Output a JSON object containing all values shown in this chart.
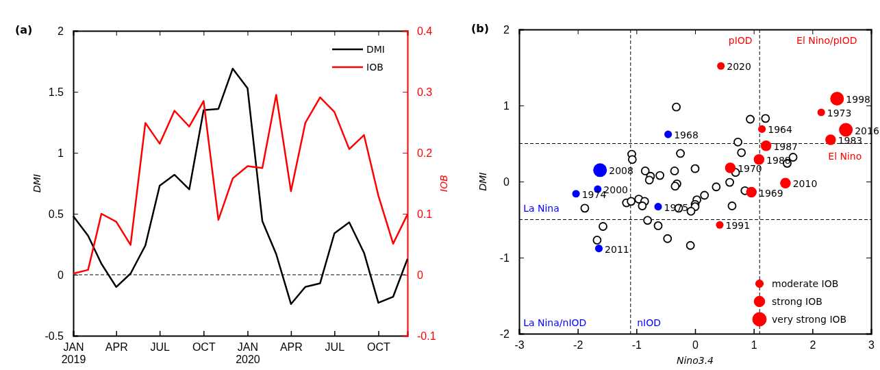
{
  "chart_data": [
    {
      "type": "line",
      "title": "(a)",
      "ylabel": "DMI",
      "y2label": "IOB",
      "legend": "top right",
      "line_style": "solid",
      "x": [
        "2019-01",
        "2019-02",
        "2019-03",
        "2019-04",
        "2019-05",
        "2019-06",
        "2019-07",
        "2019-08",
        "2019-09",
        "2019-10",
        "2019-11",
        "2019-12",
        "2020-01",
        "2020-02",
        "2020-03",
        "2020-04",
        "2020-05",
        "2020-06",
        "2020-07",
        "2020-08",
        "2020-09",
        "2020-10",
        "2020-11",
        "2020-12"
      ],
      "xlim": [
        "2019-01",
        "2020-12"
      ],
      "xticks": [
        {
          "value": "2019-01",
          "label": "JAN\n2019"
        },
        {
          "value": "2019-04",
          "label": "APR"
        },
        {
          "value": "2019-07",
          "label": "JUL"
        },
        {
          "value": "2019-10",
          "label": "OCT"
        },
        {
          "value": "2020-01",
          "label": "JAN\n2020"
        },
        {
          "value": "2020-04",
          "label": "APR"
        },
        {
          "value": "2020-07",
          "label": "JUL"
        },
        {
          "value": "2020-10",
          "label": "OCT"
        }
      ],
      "ylim": [
        -0.5,
        2
      ],
      "yticks": [
        -0.5,
        0,
        0.5,
        1,
        1.5,
        2
      ],
      "y2lim": [
        -0.1,
        0.4
      ],
      "y2ticks": [
        -0.1,
        0,
        0.1,
        0.2,
        0.3,
        0.4
      ],
      "series": [
        {
          "name": "DMI",
          "color": "#000000",
          "values": [
            0.48,
            0.32,
            0.09,
            -0.1,
            0.01,
            0.24,
            0.73,
            0.82,
            0.7,
            1.35,
            1.36,
            1.69,
            1.53,
            0.44,
            0.17,
            -0.24,
            -0.1,
            -0.07,
            0.34,
            0.43,
            0.18,
            -0.23,
            -0.18,
            0.13
          ]
        },
        {
          "name": "IOB",
          "color": "#ff0000",
          "axis": "y2",
          "values": [
            0.002,
            0.008,
            0.1,
            0.087,
            0.049,
            0.249,
            0.215,
            0.269,
            0.243,
            0.285,
            0.09,
            0.158,
            0.178,
            0.175,
            0.295,
            0.137,
            0.249,
            0.291,
            0.267,
            0.206,
            0.229,
            0.13,
            0.051,
            0.099
          ]
        }
      ],
      "ref_lines": [
        {
          "axis": "y",
          "value": 0,
          "color": "#000000",
          "line_style": "dashed"
        }
      ]
    },
    {
      "type": "scatter",
      "title": "(b)",
      "xlabel": "Nino3.4",
      "ylabel": "DMI",
      "legend": "bottom right",
      "marker": "circle",
      "xlim": [
        -3,
        3
      ],
      "xticks": [
        -3,
        -2,
        -1,
        0,
        1,
        2,
        3
      ],
      "ylim": [
        -2,
        2
      ],
      "yticks": [
        -2,
        -1,
        0,
        1,
        2
      ],
      "series": [
        {
          "type": "scatter",
          "color": "#000000",
          "x": [
            -0.32,
            0.94,
            1.2,
            0.73,
            0.79,
            1.67,
            1.57,
            0.69,
            -1.08,
            -1.07,
            -0.25,
            -0.85,
            -0.76,
            -0.78,
            -0.6,
            -0.35,
            0.0,
            0.59,
            -0.31,
            -0.34,
            0.36,
            0.85,
            0.16,
            0.03,
            0.0,
            0.0,
            -0.07,
            -0.28,
            0.63,
            -1.17,
            -1.09,
            -0.96,
            -0.86,
            -0.9,
            -1.88,
            -1.57,
            -0.81,
            -0.63,
            -0.47,
            -0.08,
            -1.67
          ],
          "values": [
            0.98,
            0.82,
            0.83,
            0.52,
            0.38,
            0.32,
            0.24,
            0.12,
            0.36,
            0.29,
            0.37,
            0.14,
            0.07,
            0.02,
            0.08,
            0.14,
            0.17,
            -0.01,
            -0.03,
            -0.06,
            -0.07,
            -0.12,
            -0.18,
            -0.24,
            -0.3,
            -0.33,
            -0.39,
            -0.35,
            -0.32,
            -0.28,
            -0.26,
            -0.23,
            -0.26,
            -0.32,
            -0.35,
            -0.59,
            -0.51,
            -0.58,
            -0.75,
            -0.84,
            -0.77
          ]
        },
        {
          "type": "bubble",
          "color": "#0000ff",
          "x": [
            -0.46,
            -1.62,
            -1.66,
            -2.03,
            -0.63,
            -1.64
          ],
          "values": [
            0.62,
            0.15,
            -0.1,
            -0.16,
            -0.33,
            -0.88
          ],
          "sizes": [
            0.31,
            1,
            0.31,
            0.31,
            0.31,
            0.31
          ]
        },
        {
          "type": "bubble",
          "name": "moderate IOB",
          "color": "#ff0000",
          "x": [
            0.44,
            2.15,
            1.14,
            0.42
          ],
          "values": [
            1.52,
            0.91,
            0.69,
            -0.57
          ],
          "sizes": [
            0.31,
            0.31,
            0.31,
            0.31
          ]
        },
        {
          "type": "bubble",
          "name": "strong IOB",
          "color": "#ff0000",
          "x": [
            2.31,
            1.21,
            1.09,
            0.6,
            1.54,
            0.96
          ],
          "values": [
            0.55,
            0.47,
            0.29,
            0.18,
            -0.02,
            -0.14
          ],
          "sizes": [
            0.6,
            0.6,
            0.6,
            0.6,
            0.6,
            0.6
          ]
        },
        {
          "type": "bubble",
          "name": "very strong IOB",
          "color": "#ff0000",
          "x": [
            2.42,
            2.57
          ],
          "values": [
            1.09,
            0.68
          ],
          "sizes": [
            1,
            1
          ]
        }
      ],
      "ref_lines": [
        {
          "axis": "x",
          "value": -1.1,
          "color": "#000000",
          "line_style": "dashed"
        },
        {
          "axis": "x",
          "value": 1.1,
          "color": "#000000",
          "line_style": "dashed"
        },
        {
          "axis": "y",
          "value": 0.5,
          "color": "#000000",
          "line_style": "dashed"
        },
        {
          "axis": "y",
          "value": -0.5,
          "color": "#000000",
          "line_style": "dashed"
        }
      ],
      "annotations": [
        {
          "text": "2020",
          "x": 0.44,
          "y": 1.52
        },
        {
          "text": "1998",
          "x": 2.42,
          "y": 1.09
        },
        {
          "text": "1973",
          "x": 2.15,
          "y": 0.91
        },
        {
          "text": "1964",
          "x": 1.14,
          "y": 0.69
        },
        {
          "text": "2016",
          "x": 2.57,
          "y": 0.68
        },
        {
          "text": "1983",
          "x": 2.31,
          "y": 0.55
        },
        {
          "text": "1987",
          "x": 1.21,
          "y": 0.47
        },
        {
          "text": "1988",
          "x": 1.09,
          "y": 0.29
        },
        {
          "text": "1970",
          "x": 0.6,
          "y": 0.18
        },
        {
          "text": "2010",
          "x": 1.54,
          "y": -0.02
        },
        {
          "text": "1969",
          "x": 0.96,
          "y": -0.14
        },
        {
          "text": "1991",
          "x": 0.42,
          "y": -0.57
        },
        {
          "text": "1968",
          "x": -0.46,
          "y": 0.62
        },
        {
          "text": "2008",
          "x": -1.62,
          "y": 0.15
        },
        {
          "text": "2000",
          "x": -1.66,
          "y": -0.1
        },
        {
          "text": "1974",
          "x": -2.03,
          "y": -0.16
        },
        {
          "text": "1975",
          "x": -0.63,
          "y": -0.33
        },
        {
          "text": "2011",
          "x": -1.64,
          "y": -0.88
        },
        "pIOD",
        "El Nino/pIOD",
        "El Nino",
        "La Nina",
        "La Nina/nIOD",
        "nIOD"
      ]
    }
  ]
}
